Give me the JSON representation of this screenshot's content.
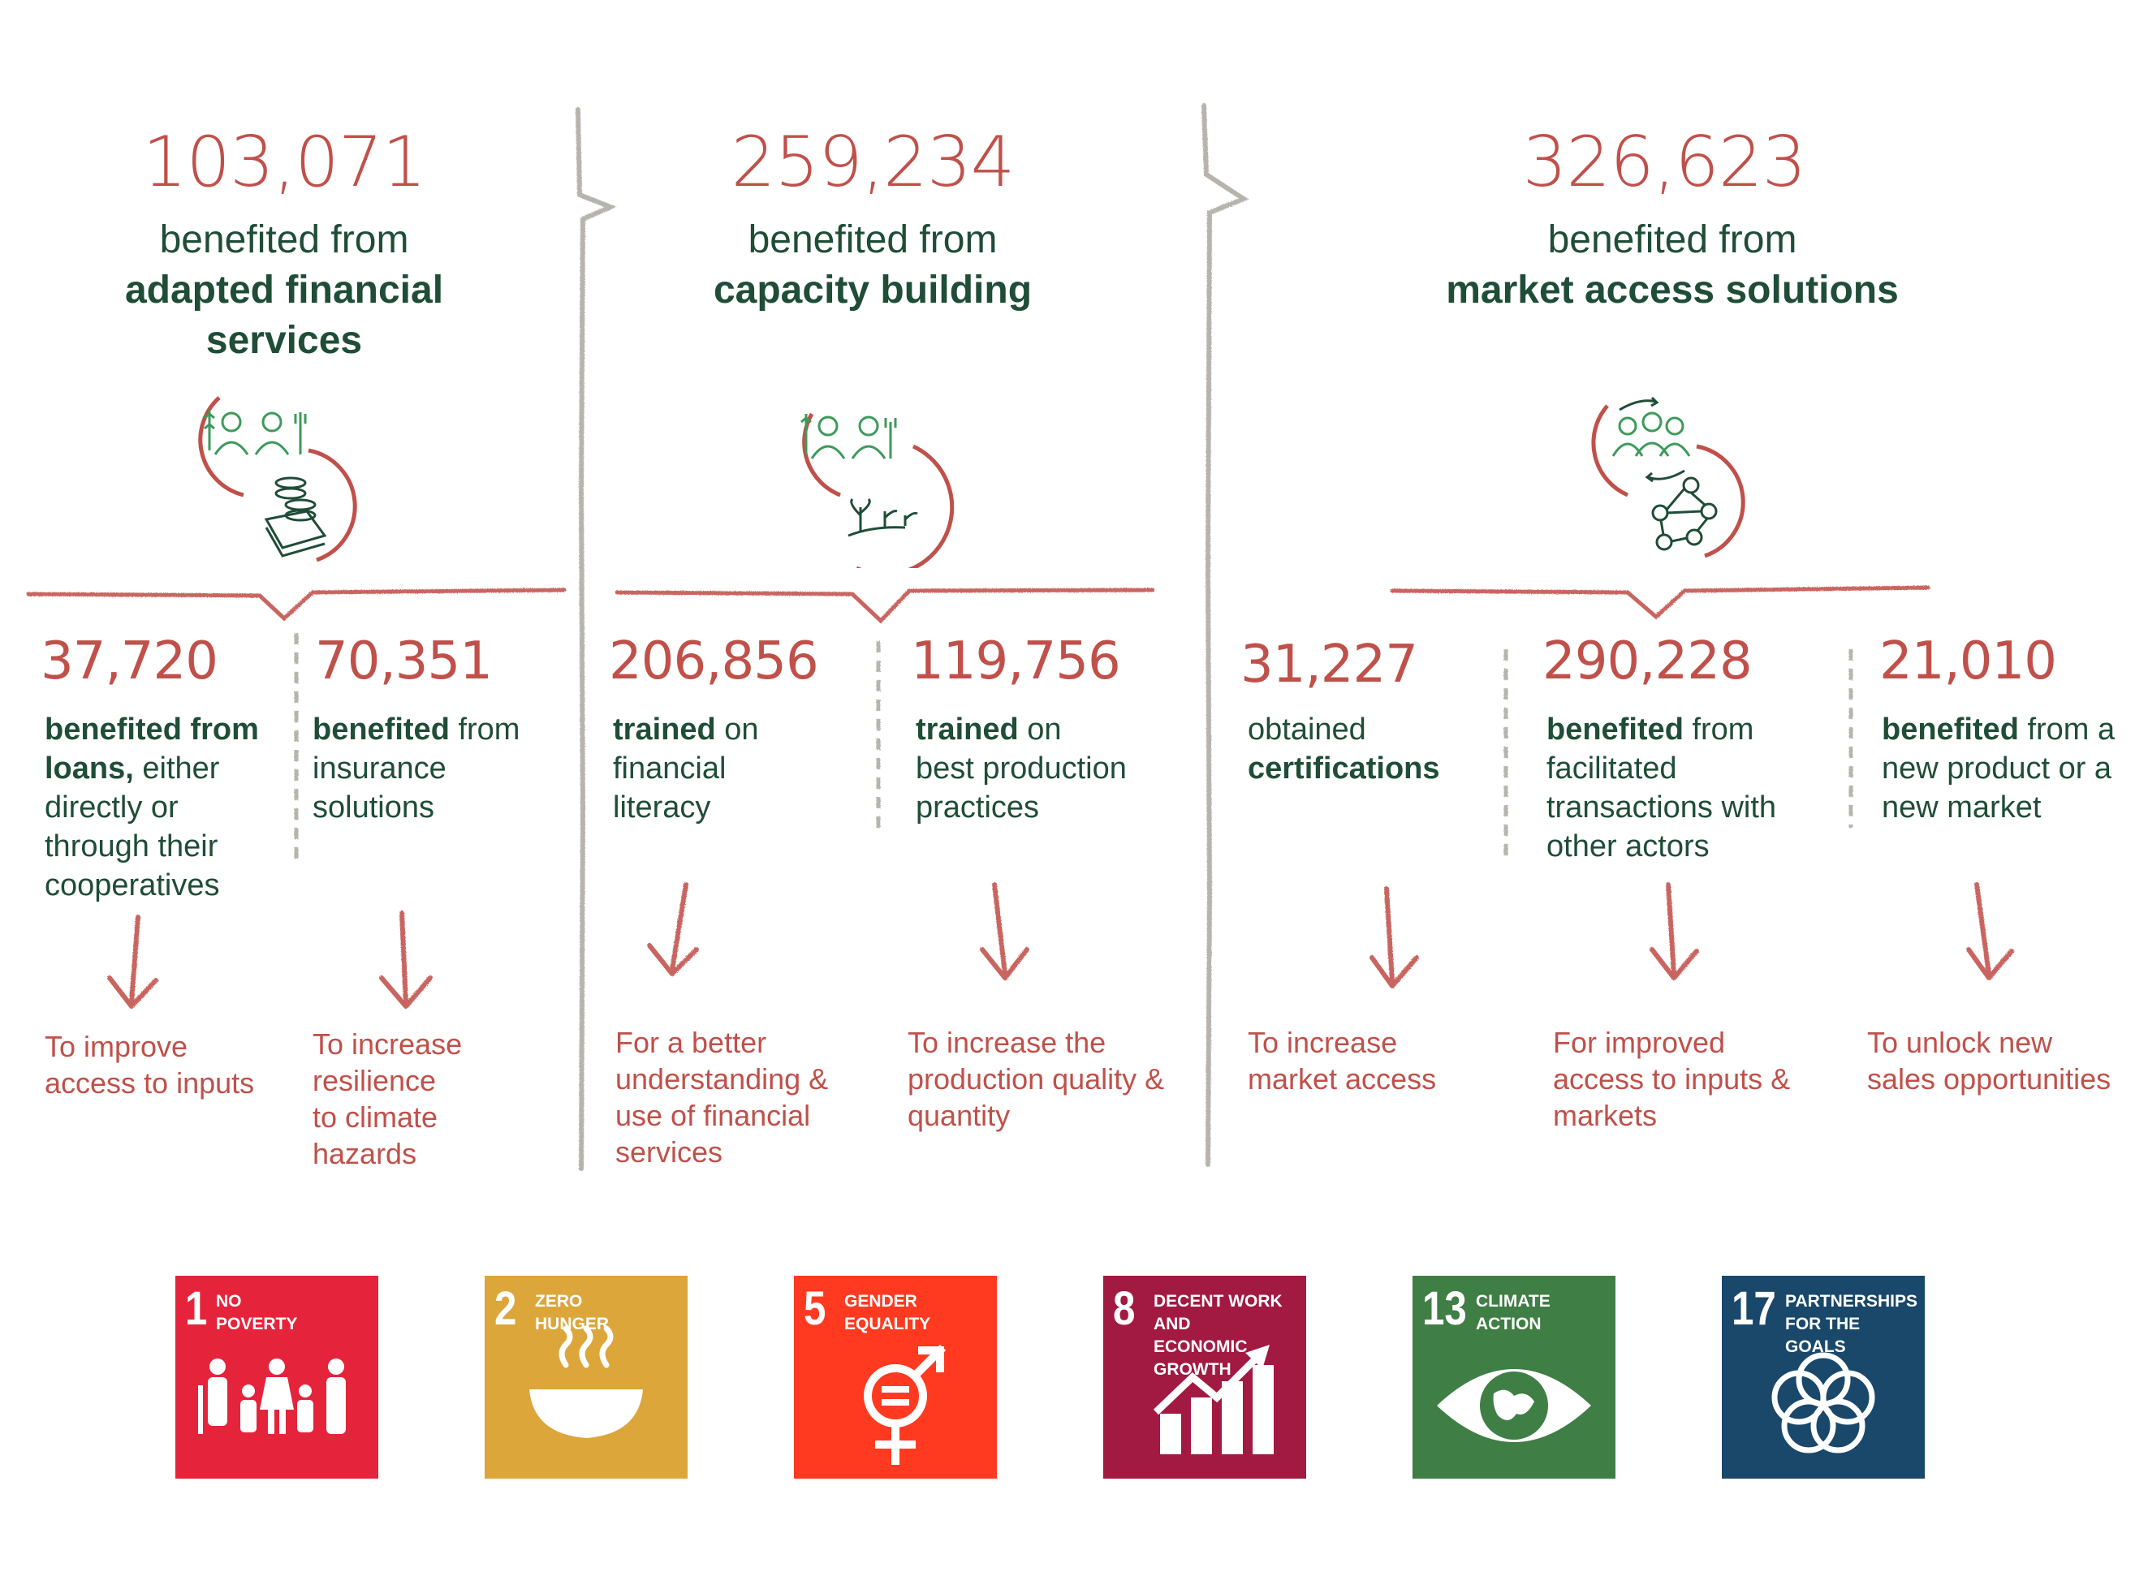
{
  "pillars": [
    {
      "total": "103,071",
      "line1": "benefited from",
      "line2": "adapted financial",
      "line3": "services"
    },
    {
      "total": "259,234",
      "line1": "benefited from",
      "line2": "capacity building",
      "line3": ""
    },
    {
      "total": "326,623",
      "line1": "benefited from",
      "line2": "market access solutions",
      "line3": ""
    }
  ],
  "stats": [
    {
      "value": "37,720",
      "lines": [
        [
          "benefited from",
          "loans,",
          " either"
        ],
        [
          "directly or"
        ],
        [
          "through their"
        ],
        [
          "cooperatives"
        ]
      ],
      "goal": [
        "To improve",
        "access to inputs"
      ]
    },
    {
      "value": "70,351",
      "lines": [
        [
          "benefited",
          " from"
        ],
        [
          "insurance"
        ],
        [
          "solutions"
        ]
      ],
      "goal": [
        "To increase",
        "resilience",
        "to climate",
        "hazards"
      ]
    },
    {
      "value": "206,856",
      "lines": [
        [
          "trained",
          " on"
        ],
        [
          "financial"
        ],
        [
          "literacy"
        ]
      ],
      "goal": [
        "For a better",
        "understanding &",
        "use of financial",
        "services"
      ]
    },
    {
      "value": "119,756",
      "lines": [
        [
          "trained",
          " on"
        ],
        [
          "best production"
        ],
        [
          "practices"
        ]
      ],
      "goal": [
        "To increase the",
        "production quality &",
        "quantity"
      ]
    },
    {
      "value": "31,227",
      "lines": [
        [
          "obtained"
        ],
        [
          "certifications"
        ]
      ],
      "goal": [
        "To increase",
        "market access"
      ]
    },
    {
      "value": "290,228",
      "lines": [
        [
          "benefited",
          " from"
        ],
        [
          "facilitated"
        ],
        [
          "transactions with"
        ],
        [
          "other actors"
        ]
      ],
      "goal": [
        "For improved",
        "access to inputs &",
        "markets"
      ]
    },
    {
      "value": "21,010",
      "lines": [
        [
          "benefited",
          " from a"
        ],
        [
          "new product or a"
        ],
        [
          "new market"
        ]
      ],
      "goal": [
        "To unlock new",
        "sales opportunities"
      ]
    }
  ],
  "sdgs": [
    {
      "number": "1",
      "line1": "NO",
      "line2": "POVERTY",
      "color": "#e5243b",
      "icon": "family-icon"
    },
    {
      "number": "2",
      "line1": "ZERO",
      "line2": "HUNGER",
      "color": "#dda63a",
      "icon": "bowl-icon"
    },
    {
      "number": "5",
      "line1": "GENDER",
      "line2": "EQUALITY",
      "color": "#ff3a21",
      "icon": "gender-equality-icon"
    },
    {
      "number": "8",
      "line1": "DECENT WORK AND",
      "line2": "ECONOMIC GROWTH",
      "color": "#a21942",
      "icon": "growth-chart-icon"
    },
    {
      "number": "13",
      "line1": "CLIMATE",
      "line2": "ACTION",
      "color": "#3f7e44",
      "icon": "eye-globe-icon"
    },
    {
      "number": "17",
      "line1": "PARTNERSHIPS",
      "line2": "FOR THE GOALS",
      "color": "#19486a",
      "icon": "rings-icon"
    }
  ]
}
